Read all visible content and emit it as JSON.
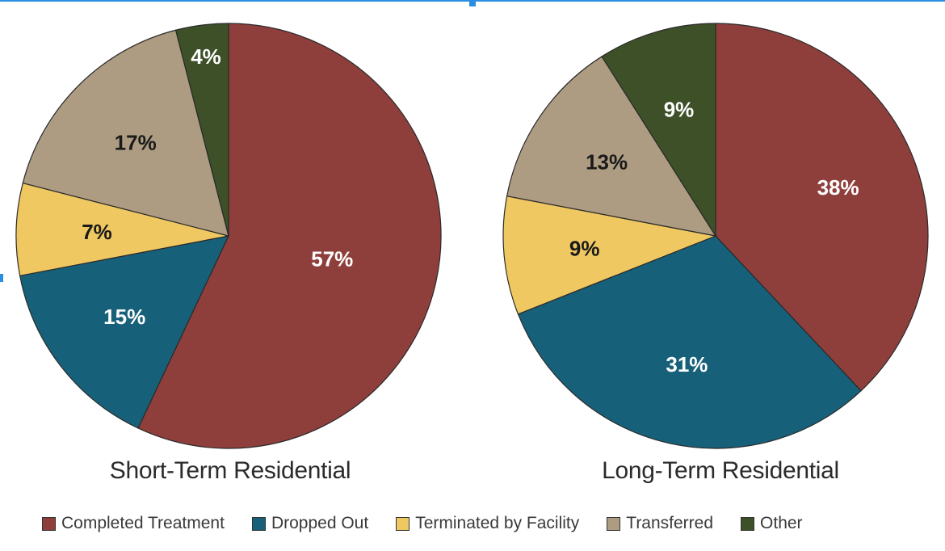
{
  "chart_data": [
    {
      "type": "pie",
      "title": "Short-Term Residential",
      "slices": [
        {
          "label": "Completed Treatment",
          "value": 57,
          "text": "57%"
        },
        {
          "label": "Dropped Out",
          "value": 15,
          "text": "15%"
        },
        {
          "label": "Terminated by Facility",
          "value": 7,
          "text": "7%"
        },
        {
          "label": "Transferred",
          "value": 17,
          "text": "17%"
        },
        {
          "label": "Other",
          "value": 4,
          "text": "4%"
        }
      ]
    },
    {
      "type": "pie",
      "title": "Long-Term Residential",
      "slices": [
        {
          "label": "Completed Treatment",
          "value": 38,
          "text": "38%"
        },
        {
          "label": "Dropped Out",
          "value": 31,
          "text": "31%"
        },
        {
          "label": "Terminated by Facility",
          "value": 9,
          "text": "9%"
        },
        {
          "label": "Transferred",
          "value": 13,
          "text": "13%"
        },
        {
          "label": "Other",
          "value": 9,
          "text": "9%"
        }
      ]
    }
  ],
  "legend": [
    {
      "label": "Completed Treatment",
      "color": "#8f3f3b",
      "text_color": "#ffffff"
    },
    {
      "label": "Dropped Out",
      "color": "#17607a",
      "text_color": "#ffffff"
    },
    {
      "label": "Terminated by Facility",
      "color": "#f0c862",
      "text_color": "#1a1a1a"
    },
    {
      "label": "Transferred",
      "color": "#ad9c82",
      "text_color": "#1a1a1a"
    },
    {
      "label": "Other",
      "color": "#3d5028",
      "text_color": "#ffffff"
    }
  ]
}
